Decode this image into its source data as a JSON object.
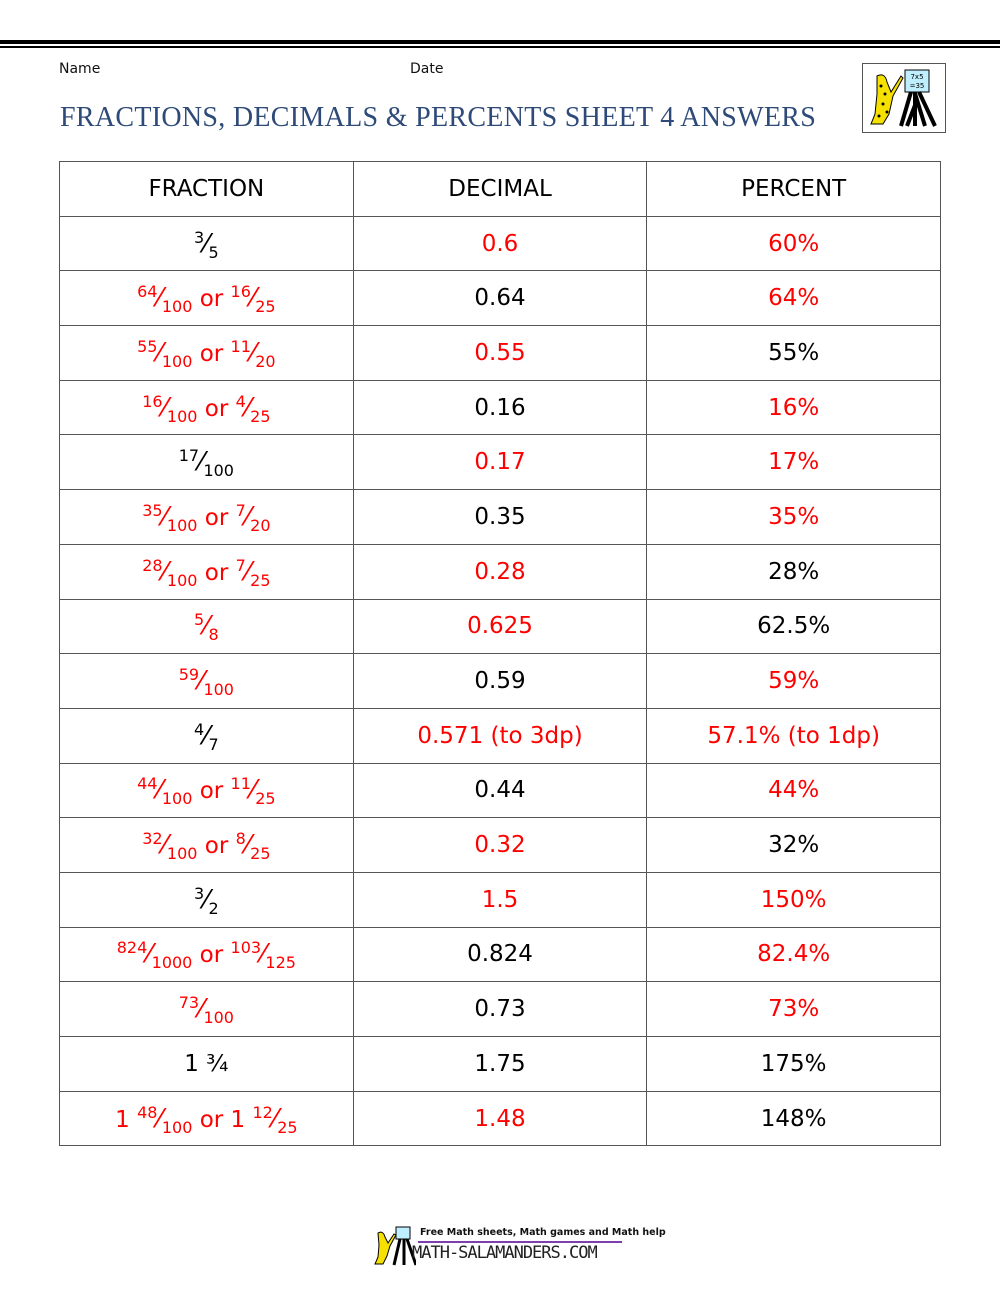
{
  "header": {
    "name_label": "Name",
    "date_label": "Date",
    "title": "FRACTIONS, DECIMALS & PERCENTS SHEET 4 ANSWERS"
  },
  "colors": {
    "answer": "#ff0000",
    "given": "#000000",
    "title": "#2e4a78"
  },
  "table": {
    "columns": [
      "FRACTION",
      "DECIMAL",
      "PERCENT"
    ],
    "rows": [
      {
        "fraction": {
          "parts": [
            {
              "n": "3",
              "d": "5"
            }
          ],
          "answer": false
        },
        "decimal": {
          "text": "0.6",
          "answer": true
        },
        "percent": {
          "text": "60%",
          "answer": true
        }
      },
      {
        "fraction": {
          "parts": [
            {
              "n": "64",
              "d": "100"
            },
            {
              "n": "16",
              "d": "25"
            }
          ],
          "answer": true
        },
        "decimal": {
          "text": "0.64",
          "answer": false
        },
        "percent": {
          "text": "64%",
          "answer": true
        }
      },
      {
        "fraction": {
          "parts": [
            {
              "n": "55",
              "d": "100"
            },
            {
              "n": "11",
              "d": "20"
            }
          ],
          "answer": true
        },
        "decimal": {
          "text": "0.55",
          "answer": true
        },
        "percent": {
          "text": "55%",
          "answer": false
        }
      },
      {
        "fraction": {
          "parts": [
            {
              "n": "16",
              "d": "100"
            },
            {
              "n": "4",
              "d": "25"
            }
          ],
          "answer": true
        },
        "decimal": {
          "text": "0.16",
          "answer": false
        },
        "percent": {
          "text": "16%",
          "answer": true
        }
      },
      {
        "fraction": {
          "parts": [
            {
              "n": "17",
              "d": "100"
            }
          ],
          "answer": false
        },
        "decimal": {
          "text": "0.17",
          "answer": true
        },
        "percent": {
          "text": "17%",
          "answer": true
        }
      },
      {
        "fraction": {
          "parts": [
            {
              "n": "35",
              "d": "100"
            },
            {
              "n": "7",
              "d": "20"
            }
          ],
          "answer": true
        },
        "decimal": {
          "text": "0.35",
          "answer": false
        },
        "percent": {
          "text": "35%",
          "answer": true
        }
      },
      {
        "fraction": {
          "parts": [
            {
              "n": "28",
              "d": "100"
            },
            {
              "n": "7",
              "d": "25"
            }
          ],
          "answer": true
        },
        "decimal": {
          "text": "0.28",
          "answer": true
        },
        "percent": {
          "text": "28%",
          "answer": false
        }
      },
      {
        "fraction": {
          "parts": [
            {
              "n": "5",
              "d": "8"
            }
          ],
          "answer": true
        },
        "decimal": {
          "text": "0.625",
          "answer": true
        },
        "percent": {
          "text": "62.5%",
          "answer": false
        }
      },
      {
        "fraction": {
          "parts": [
            {
              "n": "59",
              "d": "100"
            }
          ],
          "answer": true
        },
        "decimal": {
          "text": "0.59",
          "answer": false
        },
        "percent": {
          "text": "59%",
          "answer": true
        }
      },
      {
        "fraction": {
          "parts": [
            {
              "n": "4",
              "d": "7"
            }
          ],
          "answer": false
        },
        "decimal": {
          "text": "0.571 (to 3dp)",
          "answer": true
        },
        "percent": {
          "text": "57.1% (to 1dp)",
          "answer": true
        }
      },
      {
        "fraction": {
          "parts": [
            {
              "n": "44",
              "d": "100"
            },
            {
              "n": "11",
              "d": "25"
            }
          ],
          "answer": true
        },
        "decimal": {
          "text": "0.44",
          "answer": false
        },
        "percent": {
          "text": "44%",
          "answer": true
        }
      },
      {
        "fraction": {
          "parts": [
            {
              "n": "32",
              "d": "100"
            },
            {
              "n": "8",
              "d": "25"
            }
          ],
          "answer": true
        },
        "decimal": {
          "text": "0.32",
          "answer": true
        },
        "percent": {
          "text": "32%",
          "answer": false
        }
      },
      {
        "fraction": {
          "parts": [
            {
              "n": "3",
              "d": "2"
            }
          ],
          "answer": false
        },
        "decimal": {
          "text": "1.5",
          "answer": true
        },
        "percent": {
          "text": "150%",
          "answer": true
        }
      },
      {
        "fraction": {
          "parts": [
            {
              "n": "824",
              "d": "1000"
            },
            {
              "n": "103",
              "d": "125"
            }
          ],
          "answer": true
        },
        "decimal": {
          "text": "0.824",
          "answer": false
        },
        "percent": {
          "text": "82.4%",
          "answer": true
        }
      },
      {
        "fraction": {
          "parts": [
            {
              "n": "73",
              "d": "100"
            }
          ],
          "answer": true
        },
        "decimal": {
          "text": "0.73",
          "answer": false
        },
        "percent": {
          "text": "73%",
          "answer": true
        }
      },
      {
        "fraction": {
          "text": "1 ¾",
          "answer": false
        },
        "decimal": {
          "text": "1.75",
          "answer": false
        },
        "percent": {
          "text": "175%",
          "answer": false
        }
      },
      {
        "fraction": {
          "parts": [
            {
              "w": "1",
              "n": "48",
              "d": "100"
            },
            {
              "w": "1",
              "n": "12",
              "d": "25"
            }
          ],
          "answer": true
        },
        "decimal": {
          "text": "1.48",
          "answer": true
        },
        "percent": {
          "text": "148%",
          "answer": false
        }
      }
    ],
    "or_word": "or"
  },
  "footer": {
    "tagline": "Free Math sheets, Math games and Math help",
    "site": "MATH-SALAMANDERS.COM",
    "icon": "salamander-logo"
  }
}
